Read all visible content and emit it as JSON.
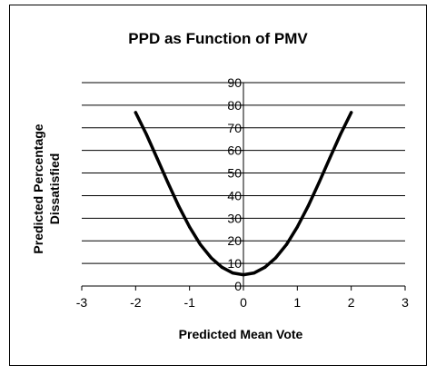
{
  "chart_data": {
    "type": "line",
    "title": "PPD as Function of PMV",
    "xlabel": "Predicted Mean Vote",
    "ylabel": [
      "Predicted Percentage",
      "Dissatisfied"
    ],
    "xlim": [
      -3,
      3
    ],
    "ylim": [
      0,
      90
    ],
    "x_ticks": [
      -3,
      -2,
      -1,
      0,
      1,
      2,
      3
    ],
    "y_ticks": [
      0,
      10,
      20,
      30,
      40,
      50,
      60,
      70,
      80,
      90
    ],
    "grid": {
      "horizontal": true,
      "vertical": false
    },
    "legend": "none",
    "line_color": "#000000",
    "series": [
      {
        "x": [
          -2.0,
          -1.8,
          -1.6,
          -1.4,
          -1.2,
          -1.0,
          -0.8,
          -0.6,
          -0.4,
          -0.2,
          0.0,
          0.2,
          0.4,
          0.6,
          0.8,
          1.0,
          1.2,
          1.4,
          1.6,
          1.8,
          2.0
        ],
        "values": [
          76.8,
          67.1,
          56.4,
          45.7,
          35.3,
          26.1,
          18.4,
          12.5,
          8.3,
          5.8,
          5.0,
          5.8,
          8.3,
          12.5,
          18.4,
          26.1,
          35.3,
          45.7,
          56.4,
          67.1,
          76.8
        ]
      }
    ]
  }
}
